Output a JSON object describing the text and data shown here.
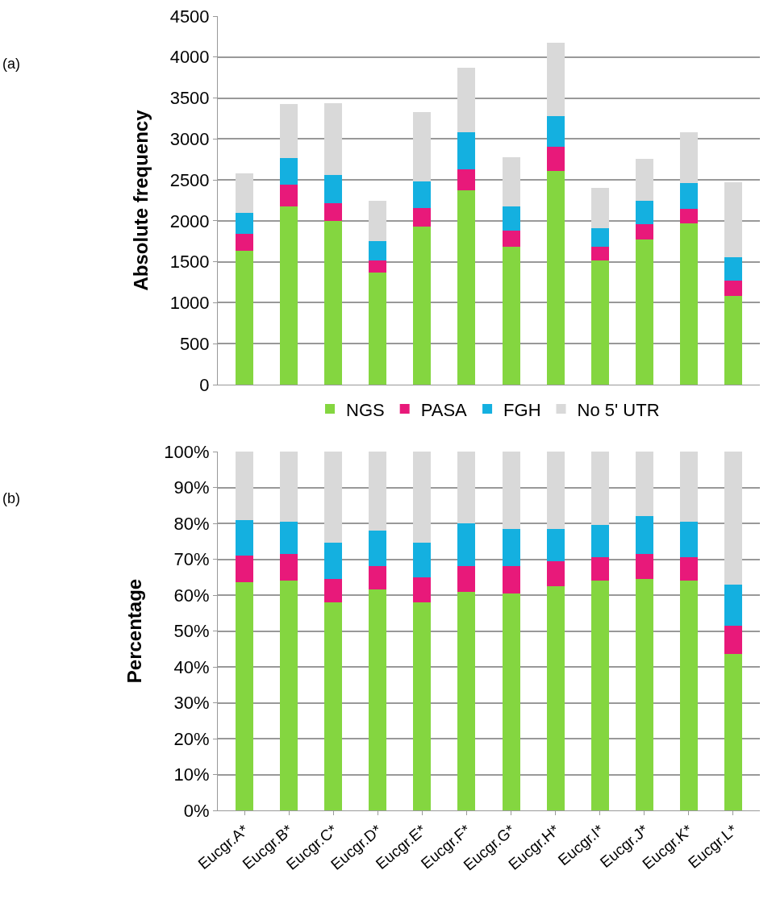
{
  "chart_data": [
    {
      "type": "bar",
      "stacked": true,
      "ylabel": "Absolute frequency",
      "annotations": [
        "(a)"
      ],
      "categories": [
        null,
        null,
        null,
        null,
        null,
        null,
        null,
        null,
        null,
        null,
        null,
        null
      ],
      "tick_labels": "y",
      "ylim": [
        0,
        4500
      ],
      "yticks": [
        0,
        500,
        1000,
        1500,
        2000,
        2500,
        3000,
        3500,
        4000,
        4500
      ],
      "grid": "y",
      "legend": "bottom",
      "series": [
        {
          "name": "NGS",
          "color": "#84d640",
          "values": [
            1630,
            2180,
            2000,
            1370,
            1930,
            2370,
            1680,
            2610,
            1520,
            1770,
            1970,
            1080
          ]
        },
        {
          "name": "PASA",
          "color": "#e8197a",
          "values": [
            210,
            260,
            220,
            150,
            230,
            260,
            200,
            290,
            160,
            190,
            180,
            190
          ]
        },
        {
          "name": "FGH",
          "color": "#14b0e0",
          "values": [
            260,
            330,
            340,
            230,
            320,
            450,
            300,
            380,
            230,
            290,
            310,
            290
          ]
        },
        {
          "name": "No 5' UTR",
          "color": "#d9d9d9",
          "values": [
            480,
            660,
            880,
            500,
            850,
            790,
            600,
            900,
            490,
            510,
            620,
            910
          ]
        }
      ]
    },
    {
      "type": "bar",
      "stacked": true,
      "ylabel": "Percentage",
      "annotations": [
        "(b)"
      ],
      "categories": [
        "Eucgr.A*",
        "Eucgr.B*",
        "Eucgr.C*",
        "Eucgr.D*",
        "Eucgr.E*",
        "Eucgr.F*",
        "Eucgr.G*",
        "Eucgr.H*",
        "Eucgr.I*",
        "Eucgr.J*",
        "Eucgr.K*",
        "Eucgr.L*"
      ],
      "ylim": [
        0,
        100
      ],
      "yticks": [
        {
          "value": 0,
          "label": "0%"
        },
        {
          "value": 10,
          "label": "10%"
        },
        {
          "value": 20,
          "label": "20%"
        },
        {
          "value": 30,
          "label": "30%"
        },
        {
          "value": 40,
          "label": "40%"
        },
        {
          "value": 50,
          "label": "50%"
        },
        {
          "value": 60,
          "label": "60%"
        },
        {
          "value": 70,
          "label": "70%"
        },
        {
          "value": 80,
          "label": "80%"
        },
        {
          "value": 90,
          "label": "90%"
        },
        {
          "value": 100,
          "label": "100%"
        }
      ],
      "grid": "y",
      "series": [
        {
          "color": "#84d640",
          "values": [
            63.5,
            64,
            58,
            61.5,
            58,
            61,
            60.5,
            62.5,
            64,
            64.5,
            64,
            43.5
          ]
        },
        {
          "color": "#e8197a",
          "values": [
            7.5,
            7.5,
            6.5,
            6.5,
            7,
            7,
            7.5,
            7,
            6.5,
            7,
            6.5,
            8
          ]
        },
        {
          "color": "#14b0e0",
          "values": [
            10,
            9,
            10,
            10,
            9.5,
            12,
            10.5,
            9,
            9,
            10.5,
            10,
            11.5
          ]
        },
        {
          "color": "#d9d9d9",
          "values": [
            19,
            19.5,
            25.5,
            22,
            25.5,
            20,
            21.5,
            21.5,
            20.5,
            18,
            19.5,
            37
          ]
        }
      ]
    }
  ]
}
